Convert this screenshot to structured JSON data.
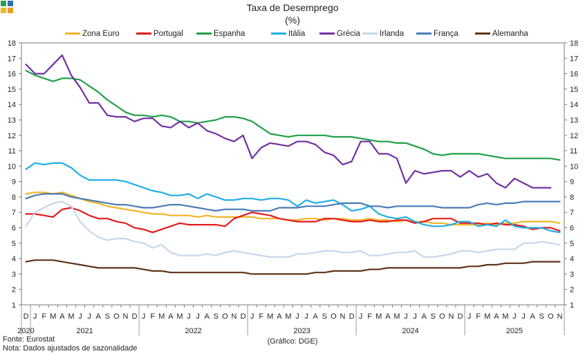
{
  "chart_data": {
    "type": "line",
    "title": "Taxa de Desemprego",
    "subtitle": "(%)",
    "ylim": [
      1,
      18
    ],
    "yticks": [
      1,
      2,
      3,
      4,
      5,
      6,
      7,
      8,
      9,
      10,
      11,
      12,
      13,
      14,
      15,
      16,
      17,
      18
    ],
    "x": [
      "D",
      "J",
      "F",
      "M",
      "A",
      "M",
      "J",
      "J",
      "A",
      "S",
      "O",
      "N",
      "D",
      "J",
      "F",
      "M",
      "A",
      "M",
      "J",
      "J",
      "A",
      "S",
      "O",
      "N",
      "D",
      "J",
      "F",
      "M",
      "A",
      "M",
      "J",
      "J",
      "A",
      "S",
      "O",
      "N",
      "D",
      "J",
      "F",
      "M",
      "A",
      "M",
      "J",
      "J",
      "A",
      "S",
      "O",
      "N",
      "D",
      "J",
      "F",
      "M",
      "A",
      "M",
      "J",
      "J",
      "A",
      "S",
      "O",
      "N"
    ],
    "years": [
      {
        "label": "2020",
        "start": 0,
        "end": 0
      },
      {
        "label": "2021",
        "start": 1,
        "end": 12
      },
      {
        "label": "2022",
        "start": 13,
        "end": 24
      },
      {
        "label": "2023",
        "start": 25,
        "end": 36
      },
      {
        "label": "2024",
        "start": 37,
        "end": 48
      },
      {
        "label": "2025",
        "start": 49,
        "end": 59
      }
    ],
    "grid": false,
    "legend_position": "top",
    "series": [
      {
        "name": "Zona Euro",
        "color": "#f0b428",
        "values": [
          8.2,
          8.3,
          8.3,
          8.2,
          8.3,
          8.1,
          7.9,
          7.7,
          7.6,
          7.4,
          7.3,
          7.2,
          7.1,
          7.0,
          6.9,
          6.9,
          6.8,
          6.8,
          6.8,
          6.7,
          6.8,
          6.7,
          6.7,
          6.7,
          6.7,
          6.7,
          6.6,
          6.6,
          6.6,
          6.5,
          6.5,
          6.6,
          6.6,
          6.5,
          6.6,
          6.6,
          6.5,
          6.5,
          6.6,
          6.5,
          6.5,
          6.4,
          6.5,
          6.4,
          6.4,
          6.3,
          6.3,
          6.2,
          6.2,
          6.2,
          6.2,
          6.3,
          6.2,
          6.3,
          6.3,
          6.4,
          6.4,
          6.4,
          6.4,
          6.3
        ]
      },
      {
        "name": "Portugal",
        "color": "#e41a1c",
        "values": [
          6.9,
          6.9,
          6.8,
          6.7,
          7.2,
          7.3,
          7.1,
          6.8,
          6.6,
          6.6,
          6.4,
          6.3,
          6.0,
          5.9,
          5.7,
          5.9,
          6.1,
          6.3,
          6.2,
          6.2,
          6.2,
          6.2,
          6.1,
          6.6,
          6.8,
          7.0,
          6.9,
          6.8,
          6.6,
          6.5,
          6.4,
          6.4,
          6.4,
          6.6,
          6.6,
          6.5,
          6.4,
          6.4,
          6.5,
          6.4,
          6.4,
          6.5,
          6.5,
          6.3,
          6.4,
          6.6,
          6.6,
          6.6,
          6.3,
          6.3,
          6.3,
          6.2,
          6.3,
          6.2,
          6.2,
          6.1,
          5.9,
          6.0,
          6.0,
          5.8
        ]
      },
      {
        "name": "Espanha",
        "color": "#1fa048",
        "values": [
          16.2,
          15.9,
          15.7,
          15.5,
          15.7,
          15.7,
          15.6,
          15.2,
          14.8,
          14.3,
          13.9,
          13.5,
          13.3,
          13.3,
          13.2,
          13.3,
          13.2,
          12.9,
          12.9,
          12.8,
          12.9,
          13.0,
          13.2,
          13.2,
          13.1,
          12.9,
          12.5,
          12.1,
          12.0,
          11.9,
          12.0,
          12.0,
          12.0,
          12.0,
          11.9,
          11.9,
          11.9,
          11.8,
          11.7,
          11.6,
          11.6,
          11.5,
          11.5,
          11.3,
          11.1,
          10.8,
          10.7,
          10.8,
          10.8,
          10.8,
          10.8,
          10.7,
          10.6,
          10.5,
          10.5,
          10.5,
          10.5,
          10.5,
          10.5,
          10.4
        ]
      },
      {
        "name": "Itália",
        "color": "#1eaee6",
        "values": [
          9.8,
          10.2,
          10.1,
          10.2,
          10.2,
          9.9,
          9.4,
          9.1,
          9.1,
          9.1,
          9.1,
          9.0,
          8.8,
          8.6,
          8.4,
          8.3,
          8.1,
          8.1,
          8.2,
          7.9,
          8.2,
          8.0,
          7.8,
          7.8,
          7.9,
          7.9,
          7.8,
          7.9,
          7.9,
          7.8,
          7.4,
          7.8,
          7.6,
          7.7,
          7.8,
          7.5,
          7.1,
          7.2,
          7.4,
          6.9,
          6.7,
          6.6,
          6.7,
          6.4,
          6.2,
          6.1,
          6.1,
          6.2,
          6.4,
          6.4,
          6.1,
          6.2,
          6.1,
          6.5,
          6.1,
          6.0,
          6.0,
          6.0,
          5.8,
          5.7
        ]
      },
      {
        "name": "Grécia",
        "color": "#7030a0",
        "values": [
          16.6,
          16.0,
          16.0,
          16.6,
          17.2,
          15.9,
          15.1,
          14.1,
          14.1,
          13.3,
          13.2,
          13.2,
          12.9,
          13.1,
          13.1,
          12.6,
          12.5,
          12.9,
          12.5,
          12.8,
          12.3,
          12.1,
          11.8,
          11.6,
          12.0,
          10.5,
          11.2,
          11.5,
          11.4,
          11.3,
          11.6,
          11.6,
          11.4,
          10.9,
          10.7,
          10.1,
          10.3,
          11.6,
          11.6,
          10.8,
          10.8,
          10.5,
          8.9,
          9.7,
          9.5,
          9.6,
          9.7,
          9.7,
          9.3,
          9.7,
          9.3,
          9.5,
          8.9,
          8.6,
          9.2,
          8.9,
          8.6,
          8.6,
          8.6,
          null
        ]
      },
      {
        "name": "Irlanda",
        "color": "#c6d7ea",
        "values": [
          6.1,
          7.0,
          7.3,
          7.6,
          7.7,
          7.4,
          6.4,
          5.8,
          5.4,
          5.2,
          5.3,
          5.3,
          5.1,
          5.0,
          4.7,
          4.9,
          4.4,
          4.2,
          4.2,
          4.2,
          4.3,
          4.2,
          4.4,
          4.5,
          4.4,
          4.3,
          4.2,
          4.1,
          4.1,
          4.1,
          4.3,
          4.3,
          4.4,
          4.5,
          4.5,
          4.4,
          4.4,
          4.5,
          4.2,
          4.2,
          4.3,
          4.4,
          4.4,
          4.5,
          4.1,
          4.1,
          4.2,
          4.3,
          4.5,
          4.5,
          4.4,
          4.5,
          4.6,
          4.6,
          4.6,
          5.0,
          5.0,
          5.1,
          5.0,
          4.9
        ]
      },
      {
        "name": "França",
        "color": "#4a7ab5",
        "values": [
          7.9,
          8.1,
          8.2,
          8.2,
          8.2,
          8.0,
          7.9,
          7.8,
          7.7,
          7.6,
          7.5,
          7.5,
          7.4,
          7.3,
          7.3,
          7.4,
          7.5,
          7.5,
          7.4,
          7.3,
          7.2,
          7.1,
          7.2,
          7.2,
          7.2,
          7.1,
          7.1,
          7.1,
          7.3,
          7.3,
          7.3,
          7.4,
          7.4,
          7.4,
          7.5,
          7.6,
          7.6,
          7.6,
          7.4,
          7.4,
          7.3,
          7.4,
          7.4,
          7.4,
          7.4,
          7.4,
          7.3,
          7.3,
          7.3,
          7.3,
          7.5,
          7.6,
          7.5,
          7.6,
          7.6,
          7.7,
          7.7,
          7.7,
          7.7,
          7.7
        ]
      },
      {
        "name": "Alemanha",
        "color": "#5c3317",
        "values": [
          3.8,
          3.9,
          3.9,
          3.9,
          3.8,
          3.7,
          3.6,
          3.5,
          3.4,
          3.4,
          3.4,
          3.4,
          3.4,
          3.3,
          3.2,
          3.2,
          3.1,
          3.1,
          3.1,
          3.1,
          3.1,
          3.1,
          3.1,
          3.1,
          3.1,
          3.0,
          3.0,
          3.0,
          3.0,
          3.0,
          3.0,
          3.0,
          3.1,
          3.1,
          3.2,
          3.2,
          3.2,
          3.2,
          3.3,
          3.3,
          3.4,
          3.4,
          3.4,
          3.4,
          3.4,
          3.4,
          3.4,
          3.4,
          3.4,
          3.5,
          3.5,
          3.6,
          3.6,
          3.7,
          3.7,
          3.7,
          3.8,
          3.8,
          3.8,
          3.8
        ]
      }
    ],
    "source": "Fonte: Eurostat",
    "note": "Nota: Dados ajustados de sazonalidade",
    "credit": "(Gráfico: DGE)"
  },
  "logo_colors": [
    "#2e9e4f",
    "#2f6fb6",
    "#f2b824",
    "#e8a21a"
  ]
}
